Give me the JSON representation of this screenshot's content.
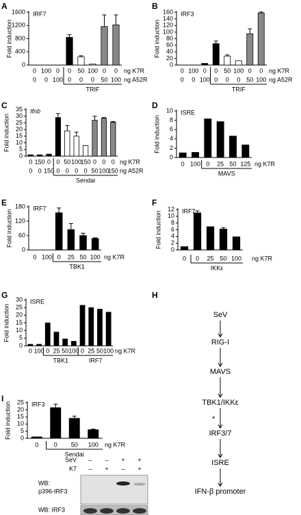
{
  "chart_data": [
    {
      "type": "bar",
      "panel": "A",
      "title": "IRF7",
      "ylabel": "Fold induction",
      "ylim": [
        0,
        1600
      ],
      "yticks": [
        0,
        400,
        800,
        1200,
        1600
      ],
      "row_labels": [
        "ng K7R",
        "ng A52R"
      ],
      "groups": [
        {
          "label": null,
          "rows": [
            [
              "0",
              "100",
              "0"
            ],
            [
              "0",
              "0",
              "100"
            ]
          ]
        },
        {
          "label": "TRIF",
          "rows": [
            [
              "0",
              "50",
              "100",
              "0",
              "0"
            ],
            [
              "0",
              "0",
              "0",
              "50",
              "100"
            ]
          ]
        }
      ],
      "values": [
        0,
        0,
        0,
        840,
        250,
        30,
        1170,
        1220
      ],
      "errors": [
        null,
        null,
        null,
        80,
        30,
        null,
        350,
        300
      ],
      "colors": [
        "#000000",
        "#000000",
        "#000000",
        "#000000",
        "#ffffff",
        "#ffffff",
        "#888888",
        "#888888"
      ]
    },
    {
      "type": "bar",
      "panel": "B",
      "title": "IRF3",
      "ylabel": "Fold induction",
      "ylim": [
        0,
        160
      ],
      "yticks": [
        0,
        20,
        40,
        60,
        80,
        100,
        120,
        140,
        160
      ],
      "row_labels": [
        "ng K7R",
        "ng A52R"
      ],
      "groups": [
        {
          "label": null,
          "rows": [
            [
              "0",
              "100",
              "0"
            ],
            [
              "0",
              "0",
              "100"
            ]
          ]
        },
        {
          "label": "TRIF",
          "rows": [
            [
              "0",
              "50",
              "100",
              "0",
              "0"
            ],
            [
              "0",
              "0",
              "0",
              "50",
              "100"
            ]
          ]
        }
      ],
      "values": [
        0,
        0,
        5,
        65,
        27,
        13,
        95,
        158
      ],
      "errors": [
        null,
        null,
        null,
        8,
        4,
        null,
        15,
        3
      ],
      "colors": [
        "#000000",
        "#000000",
        "#000000",
        "#000000",
        "#ffffff",
        "#ffffff",
        "#888888",
        "#888888"
      ]
    },
    {
      "type": "bar",
      "panel": "C",
      "title": "Ifnb",
      "title_italic": true,
      "ylabel": "Fold induction",
      "ylim": [
        0,
        35
      ],
      "yticks": [
        0,
        5,
        10,
        15,
        20,
        25,
        30,
        35
      ],
      "row_labels": [
        "ng K7R",
        "ng A52R"
      ],
      "groups": [
        {
          "label": null,
          "rows": [
            [
              "0",
              "150",
              "0"
            ],
            [
              "0",
              "0",
              "150"
            ]
          ]
        },
        {
          "label": "Sendai",
          "rows": [
            [
              "0",
              "50",
              "100",
              "150",
              "0",
              "0",
              "0"
            ],
            [
              "0",
              "0",
              "0",
              "0",
              "50",
              "100",
              "150"
            ]
          ]
        }
      ],
      "values": [
        1,
        1,
        1.5,
        29,
        19,
        15,
        8,
        27,
        28.5,
        25.5
      ],
      "errors": [
        null,
        null,
        null,
        3,
        4,
        3,
        null,
        3,
        0.5,
        0.5
      ],
      "colors": [
        "#000000",
        "#000000",
        "#000000",
        "#000000",
        "#ffffff",
        "#ffffff",
        "#ffffff",
        "#888888",
        "#888888",
        "#888888"
      ]
    },
    {
      "type": "bar",
      "panel": "D",
      "title": "ISRE",
      "ylabel": "Fold induction",
      "ylim": [
        0,
        10
      ],
      "yticks": [
        0,
        2,
        4,
        6,
        8,
        10
      ],
      "row_labels": [
        "ng K7R"
      ],
      "groups": [
        {
          "label": null,
          "rows": [
            [
              "0",
              "100"
            ]
          ]
        },
        {
          "label": "MAVS",
          "rows": [
            [
              "0",
              "25",
              "50",
              "125"
            ]
          ]
        }
      ],
      "values": [
        1,
        1.1,
        8.3,
        7.7,
        4.6,
        2.7
      ],
      "colors": [
        "#000000",
        "#000000",
        "#000000",
        "#000000",
        "#000000",
        "#000000"
      ]
    },
    {
      "type": "bar",
      "panel": "E",
      "title": "IRF7",
      "ylabel": "Fold induction",
      "ylim": [
        0,
        180
      ],
      "yticks": [
        0,
        60,
        120,
        180
      ],
      "row_labels": [
        "ng K7R"
      ],
      "groups": [
        {
          "label": null,
          "rows": [
            [
              "0",
              "100"
            ]
          ]
        },
        {
          "label": "TBK1",
          "rows": [
            [
              "0",
              "25",
              "50",
              "100"
            ]
          ]
        }
      ],
      "values": [
        0,
        0,
        155,
        85,
        60,
        48
      ],
      "errors": [
        null,
        null,
        20,
        25,
        10,
        3
      ],
      "colors": [
        "#000000",
        "#000000",
        "#000000",
        "#000000",
        "#000000",
        "#000000"
      ]
    },
    {
      "type": "bar",
      "panel": "F",
      "title": "IRF7",
      "ylabel": "Fold induction",
      "ylim": [
        0,
        12
      ],
      "yticks": [
        0,
        2,
        4,
        6,
        8,
        10,
        12
      ],
      "row_labels": [
        "ng K7R"
      ],
      "groups": [
        {
          "label": null,
          "rows": [
            [
              "0"
            ]
          ]
        },
        {
          "label": "IKKε",
          "rows": [
            [
              "0",
              "25",
              "50",
              "100"
            ]
          ]
        }
      ],
      "values": [
        1,
        11,
        6.9,
        6.2,
        3.9
      ],
      "errors": [
        null,
        0.6,
        null,
        0.4,
        null
      ],
      "colors": [
        "#000000",
        "#000000",
        "#000000",
        "#000000",
        "#000000"
      ]
    },
    {
      "type": "bar",
      "panel": "G",
      "title": "ISRE",
      "ylabel": "Fold induction",
      "ylim": [
        0,
        30
      ],
      "yticks": [
        0,
        5,
        10,
        15,
        20,
        25,
        30
      ],
      "row_labels": [
        "ng K7R"
      ],
      "groups": [
        {
          "label": null,
          "rows": [
            [
              "0",
              "100"
            ]
          ]
        },
        {
          "label": "TBK1",
          "rows": [
            [
              "0",
              "25",
              "50",
              "100"
            ]
          ]
        },
        {
          "label": "IRF7",
          "rows": [
            [
              "0",
              "25",
              "50",
              "100"
            ]
          ]
        }
      ],
      "values": [
        1,
        1,
        15,
        9,
        4.5,
        3,
        26.5,
        25,
        24,
        22
      ],
      "colors": [
        "#000000",
        "#000000",
        "#000000",
        "#000000",
        "#000000",
        "#000000",
        "#000000",
        "#000000",
        "#000000",
        "#000000"
      ]
    },
    {
      "type": "bar",
      "panel": "I",
      "title": "IRF3",
      "ylabel": "Fold induction",
      "ylim": [
        0,
        25
      ],
      "yticks": [
        0,
        5,
        10,
        15,
        20,
        25
      ],
      "row_labels": [
        "ng K7R"
      ],
      "groups": [
        {
          "label": null,
          "rows": [
            [
              "0"
            ]
          ]
        },
        {
          "label": "Sendai",
          "rows": [
            [
              "0",
              "50",
              "100"
            ]
          ]
        }
      ],
      "values": [
        1,
        21.5,
        14,
        6
      ],
      "errors": [
        null,
        2.5,
        1.5,
        0.5
      ],
      "colors": [
        "#000000",
        "#000000",
        "#000000",
        "#000000"
      ]
    }
  ],
  "diagram": {
    "panel": "H",
    "nodes": [
      "SeV",
      "RIG-I",
      "MAVS",
      "TBK1/IKKε",
      "IRF3/7",
      "ISRE",
      "IFN-β promoter"
    ],
    "annotation": "*"
  },
  "blot": {
    "treatments": [
      {
        "label": "SeV",
        "values": [
          "–",
          "–",
          "+",
          "+"
        ]
      },
      {
        "label": "K7",
        "values": [
          "–",
          "+",
          "–",
          "+"
        ]
      }
    ],
    "panels": [
      {
        "label": [
          "WB:",
          "p396-IRF3"
        ]
      },
      {
        "label": [
          "WB: IRF3"
        ]
      }
    ]
  }
}
